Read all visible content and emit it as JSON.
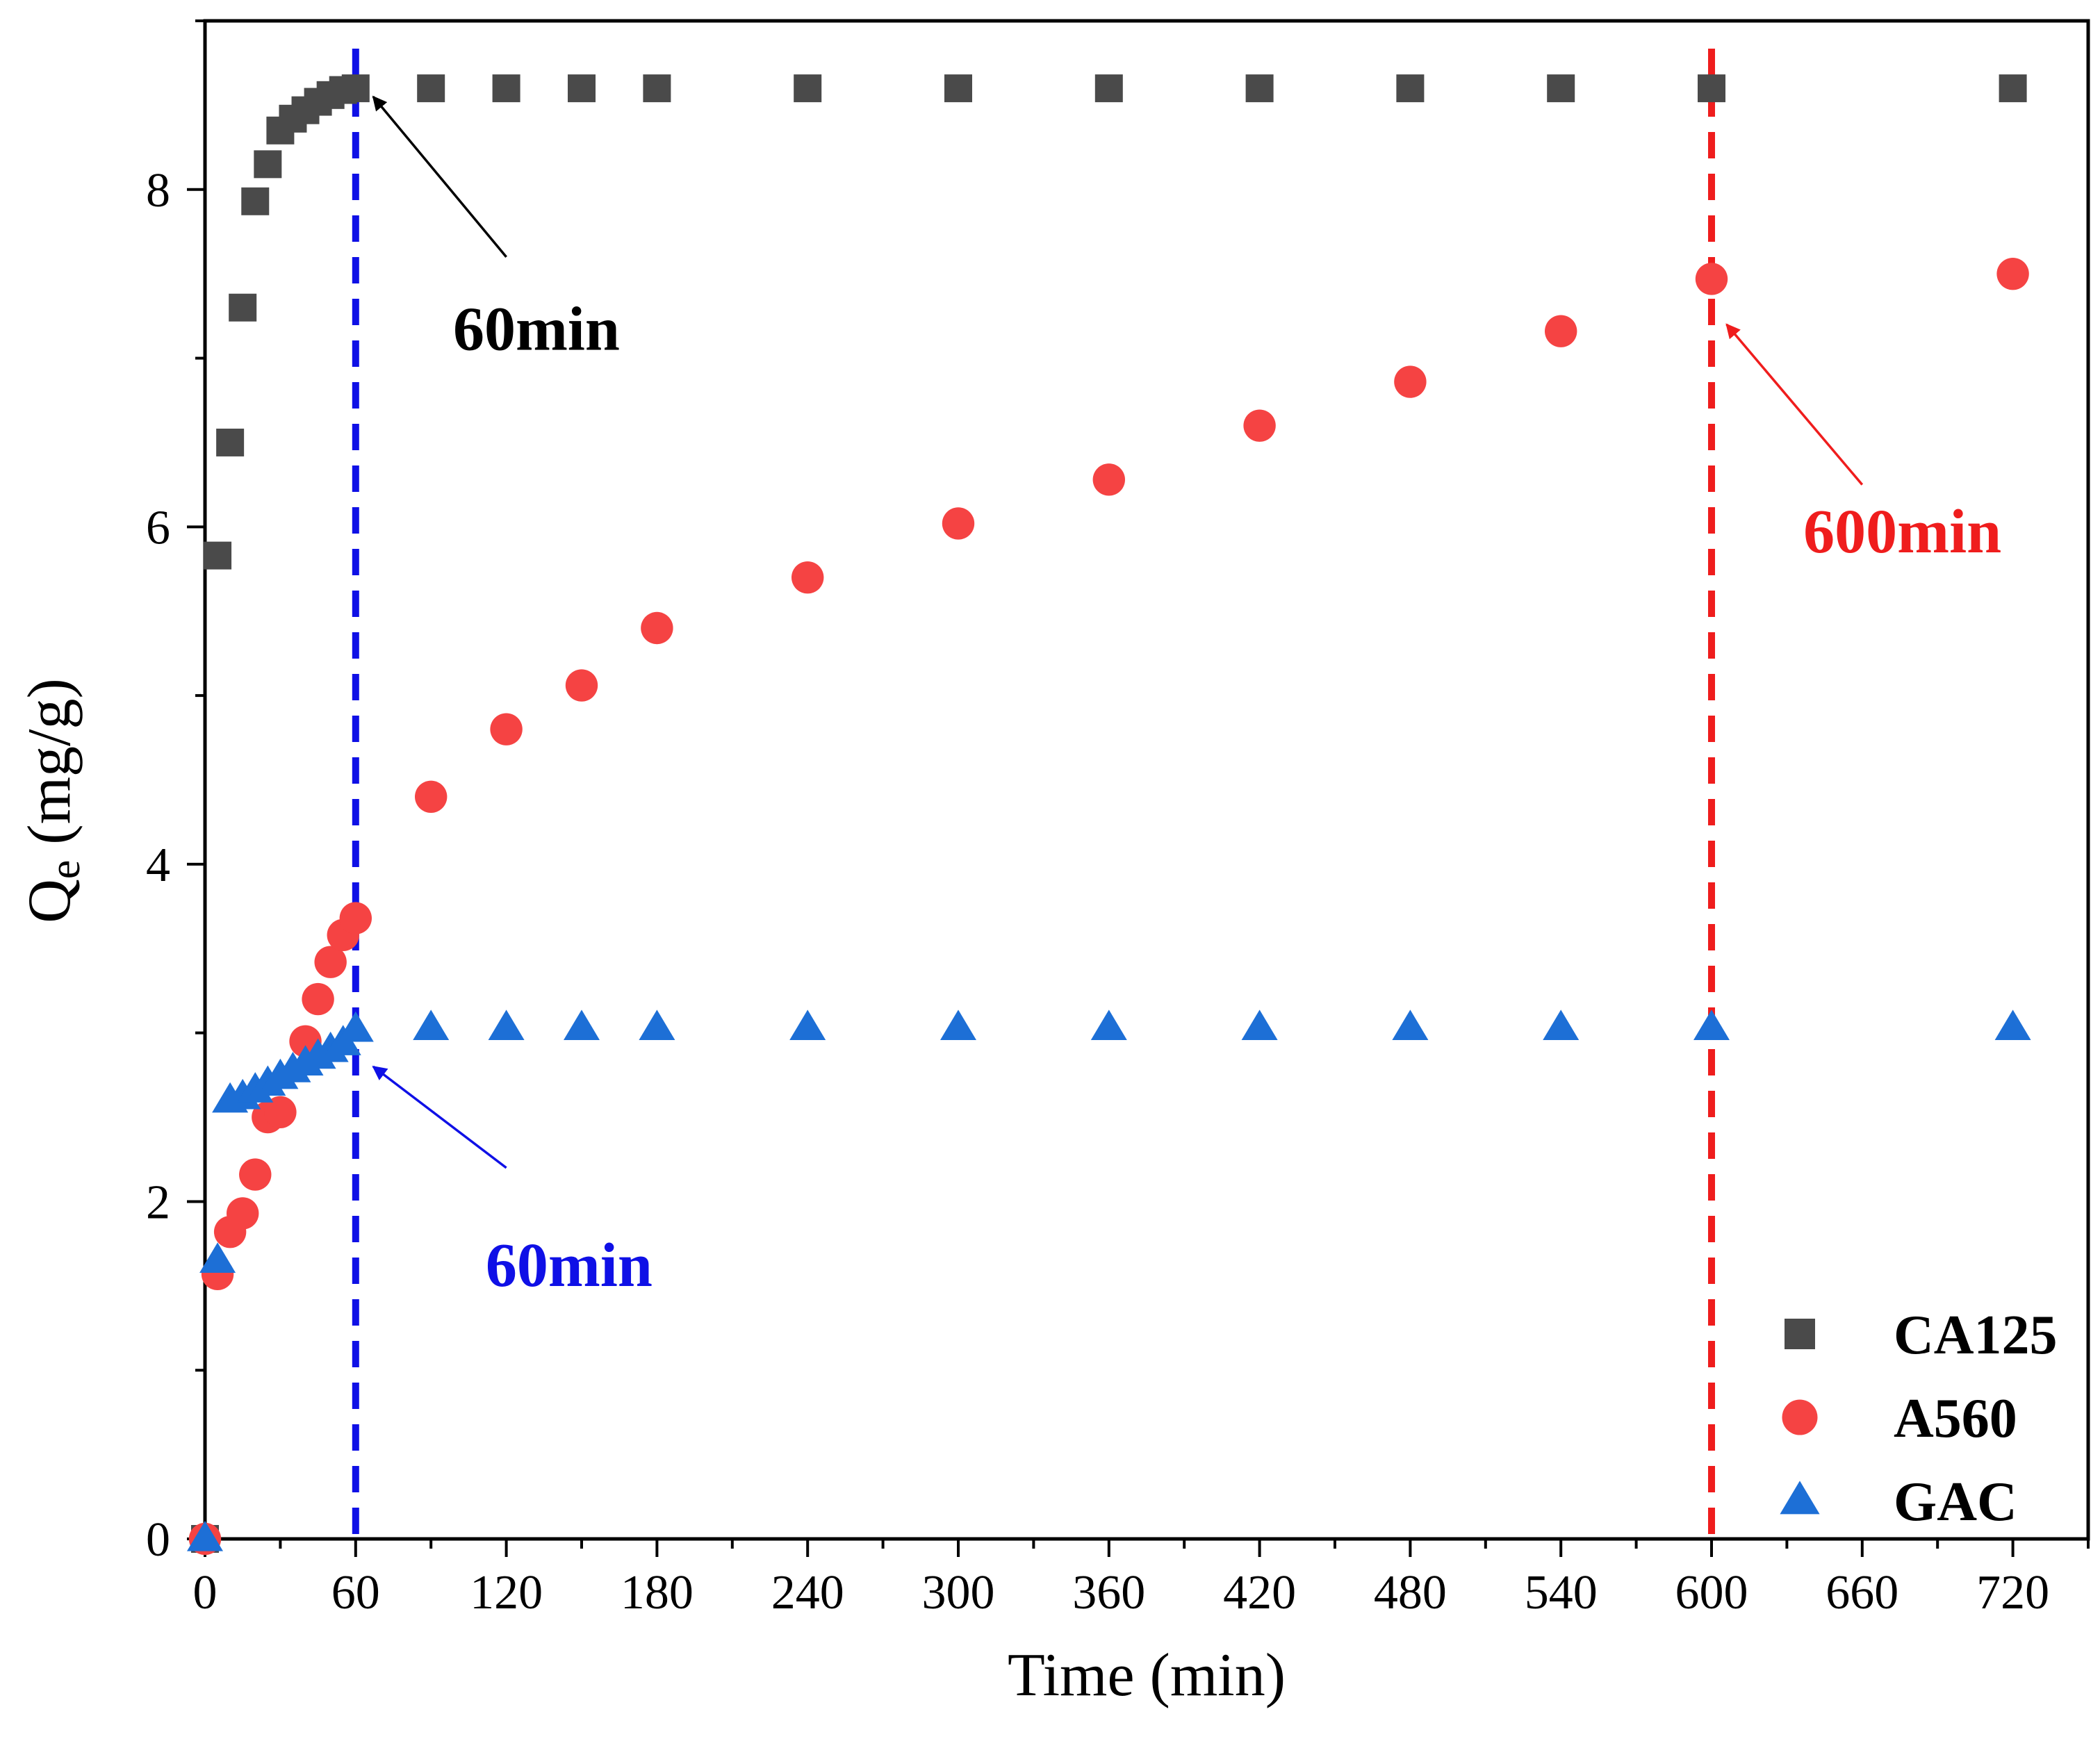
{
  "chart_data": {
    "type": "scatter",
    "title": "",
    "xlabel": "Time (min)",
    "ylabel_main": "Q",
    "ylabel_sub": "e",
    "ylabel_unit": " (mg/g)",
    "xlim": [
      0,
      750
    ],
    "ylim": [
      0,
      9
    ],
    "xticks": [
      0,
      60,
      120,
      180,
      240,
      300,
      360,
      420,
      480,
      540,
      600,
      660,
      720
    ],
    "yticks": [
      0,
      2,
      4,
      6,
      8
    ],
    "legend_position": "bottom-right",
    "series": [
      {
        "name": "CA125",
        "marker": "square",
        "color": "#4a4a4a",
        "points": [
          [
            0,
            0
          ],
          [
            5,
            5.83
          ],
          [
            10,
            6.5
          ],
          [
            15,
            7.3
          ],
          [
            20,
            7.93
          ],
          [
            25,
            8.15
          ],
          [
            30,
            8.35
          ],
          [
            35,
            8.42
          ],
          [
            40,
            8.47
          ],
          [
            45,
            8.52
          ],
          [
            50,
            8.56
          ],
          [
            55,
            8.59
          ],
          [
            60,
            8.6
          ],
          [
            90,
            8.6
          ],
          [
            120,
            8.6
          ],
          [
            150,
            8.6
          ],
          [
            180,
            8.6
          ],
          [
            240,
            8.6
          ],
          [
            300,
            8.6
          ],
          [
            360,
            8.6
          ],
          [
            420,
            8.6
          ],
          [
            480,
            8.6
          ],
          [
            540,
            8.6
          ],
          [
            600,
            8.6
          ],
          [
            720,
            8.6
          ]
        ]
      },
      {
        "name": "A560",
        "marker": "circle",
        "color": "#f54343",
        "points": [
          [
            0,
            0
          ],
          [
            5,
            1.57
          ],
          [
            10,
            1.82
          ],
          [
            15,
            1.93
          ],
          [
            20,
            2.16
          ],
          [
            25,
            2.5
          ],
          [
            30,
            2.53
          ],
          [
            40,
            2.95
          ],
          [
            45,
            3.2
          ],
          [
            50,
            3.42
          ],
          [
            55,
            3.58
          ],
          [
            60,
            3.68
          ],
          [
            90,
            4.4
          ],
          [
            120,
            4.8
          ],
          [
            150,
            5.06
          ],
          [
            180,
            5.4
          ],
          [
            240,
            5.7
          ],
          [
            300,
            6.02
          ],
          [
            360,
            6.28
          ],
          [
            420,
            6.6
          ],
          [
            480,
            6.86
          ],
          [
            540,
            7.16
          ],
          [
            600,
            7.47
          ],
          [
            720,
            7.5
          ]
        ]
      },
      {
        "name": "GAC",
        "marker": "triangle",
        "color": "#1d6fd6",
        "points": [
          [
            0,
            0
          ],
          [
            5,
            1.65
          ],
          [
            10,
            2.6
          ],
          [
            15,
            2.62
          ],
          [
            20,
            2.66
          ],
          [
            25,
            2.7
          ],
          [
            30,
            2.74
          ],
          [
            35,
            2.78
          ],
          [
            40,
            2.82
          ],
          [
            45,
            2.86
          ],
          [
            50,
            2.9
          ],
          [
            55,
            2.94
          ],
          [
            60,
            3.02
          ],
          [
            90,
            3.03
          ],
          [
            120,
            3.03
          ],
          [
            150,
            3.03
          ],
          [
            180,
            3.03
          ],
          [
            240,
            3.03
          ],
          [
            300,
            3.03
          ],
          [
            360,
            3.03
          ],
          [
            420,
            3.03
          ],
          [
            480,
            3.03
          ],
          [
            540,
            3.03
          ],
          [
            600,
            3.03
          ],
          [
            720,
            3.03
          ]
        ]
      }
    ],
    "reference_lines": [
      {
        "x": 60,
        "color": "#0f10e6",
        "style": "dashed"
      },
      {
        "x": 600,
        "color": "#ef1d1d",
        "style": "dashed"
      }
    ],
    "annotations": [
      {
        "text": "60min",
        "color": "#000000",
        "arrow_to": [
          67,
          8.55
        ],
        "arrow_from": [
          120,
          7.6
        ],
        "text_at": [
          132,
          7.05
        ]
      },
      {
        "text": "60min",
        "color": "#0f10e6",
        "arrow_to": [
          67,
          2.8
        ],
        "arrow_from": [
          120,
          2.2
        ],
        "text_at": [
          145,
          1.5
        ]
      },
      {
        "text": "600min",
        "color": "#ef1d1d",
        "arrow_to": [
          606,
          7.2
        ],
        "arrow_from": [
          660,
          6.25
        ],
        "text_at": [
          676,
          5.85
        ]
      }
    ]
  }
}
